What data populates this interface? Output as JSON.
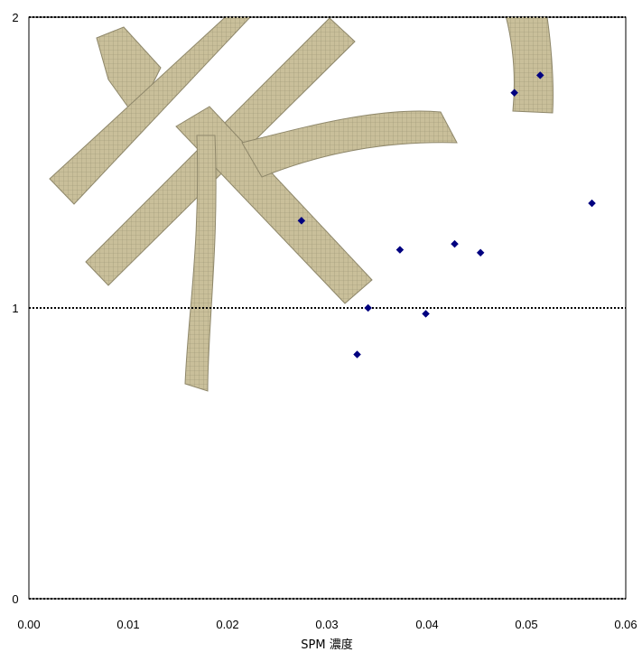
{
  "chart_data": {
    "type": "scatter",
    "title": "",
    "xlabel": "SPM 濃度",
    "ylabel": "",
    "xlim": [
      0,
      0.06
    ],
    "ylim": [
      0,
      2
    ],
    "x_ticks": [
      "0.00",
      "0.01",
      "0.02",
      "0.03",
      "0.04",
      "0.05",
      "0.06"
    ],
    "y_ticks": [
      "0",
      "1",
      "2"
    ],
    "grid": "horizontal dotted at y=1 and y=2",
    "marker": "diamond",
    "series": [
      {
        "color": "#000080",
        "points": [
          {
            "x": 0.0274,
            "y": 1.3
          },
          {
            "x": 0.033,
            "y": 0.84
          },
          {
            "x": 0.0341,
            "y": 1.0
          },
          {
            "x": 0.0373,
            "y": 1.2
          },
          {
            "x": 0.0399,
            "y": 0.98
          },
          {
            "x": 0.0428,
            "y": 1.22
          },
          {
            "x": 0.0454,
            "y": 1.19
          },
          {
            "x": 0.0488,
            "y": 1.74
          },
          {
            "x": 0.0514,
            "y": 1.8
          },
          {
            "x": 0.0566,
            "y": 1.36
          }
        ]
      }
    ]
  },
  "watermark": {
    "glyph": "米",
    "color": "#c9bf9a"
  }
}
